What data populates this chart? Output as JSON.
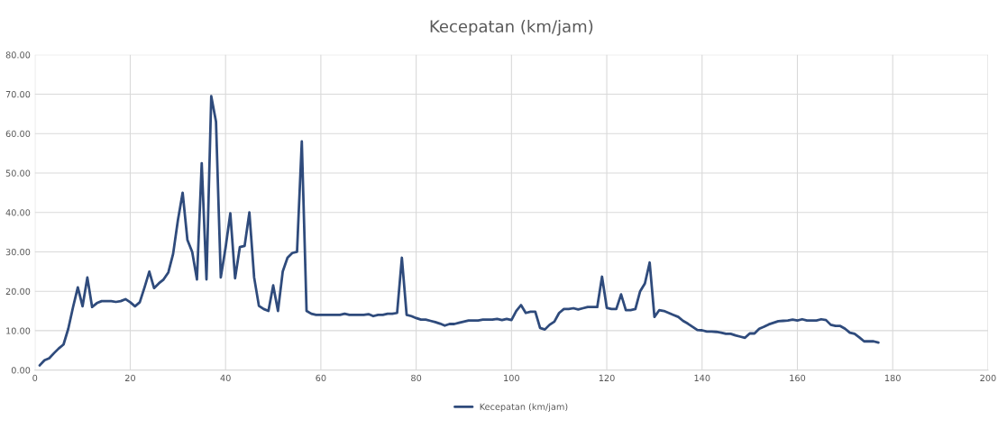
{
  "chart_data": {
    "type": "line",
    "title": "Kecepatan (km/jam)",
    "x": [
      1,
      2,
      3,
      4,
      5,
      6,
      7,
      8,
      9,
      10,
      11,
      12,
      13,
      14,
      15,
      16,
      17,
      18,
      19,
      20,
      21,
      22,
      23,
      24,
      25,
      26,
      27,
      28,
      29,
      30,
      31,
      32,
      33,
      34,
      35,
      36,
      37,
      38,
      39,
      40,
      41,
      42,
      43,
      44,
      45,
      46,
      47,
      48,
      49,
      50,
      51,
      52,
      53,
      54,
      55,
      56,
      57,
      58,
      59,
      60,
      61,
      62,
      63,
      64,
      65,
      66,
      67,
      68,
      69,
      70,
      71,
      72,
      73,
      74,
      75,
      76,
      77,
      78,
      79,
      80,
      81,
      82,
      83,
      84,
      85,
      86,
      87,
      88,
      89,
      90,
      91,
      92,
      93,
      94,
      95,
      96,
      97,
      98,
      99,
      100,
      101,
      102,
      103,
      104,
      105,
      106,
      107,
      108,
      109,
      110,
      111,
      112,
      113,
      114,
      115,
      116,
      117,
      118,
      119,
      120,
      121,
      122,
      123,
      124,
      125,
      126,
      127,
      128,
      129,
      130,
      131,
      132,
      133,
      134,
      135,
      136,
      137,
      138,
      139,
      140,
      141,
      142,
      143,
      144,
      145,
      146,
      147,
      148,
      149,
      150,
      151,
      152,
      153,
      154,
      155,
      156,
      157,
      158,
      159,
      160,
      161,
      162,
      163,
      164,
      165,
      166,
      167,
      168,
      169,
      170,
      171,
      172,
      173,
      174,
      175,
      176,
      177
    ],
    "series": [
      {
        "name": "Kecepatan (km/jam)",
        "color": "#2f4b7c",
        "values": [
          1.2,
          2.5,
          3.0,
          4.3,
          5.5,
          6.5,
          10.5,
          16,
          21,
          16.2,
          23.5,
          16,
          17,
          17.5,
          17.5,
          17.5,
          17.3,
          17.5,
          18,
          17.2,
          16.2,
          17.2,
          21,
          25,
          20.8,
          22,
          23,
          24.8,
          29.5,
          38,
          45,
          33,
          30,
          23,
          52.5,
          23,
          69.5,
          63,
          23.5,
          31,
          39.8,
          23.3,
          31.2,
          31.5,
          40,
          23.5,
          16.3,
          15.5,
          15,
          21.5,
          15,
          25,
          28.5,
          29.7,
          30,
          58,
          15,
          14.3,
          14,
          14,
          14,
          14,
          14,
          14,
          14.3,
          14,
          14,
          14,
          14,
          14.2,
          13.7,
          14,
          14,
          14.3,
          14.3,
          14.5,
          28.5,
          14,
          13.7,
          13.2,
          12.8,
          12.8,
          12.5,
          12.2,
          11.8,
          11.3,
          11.7,
          11.7,
          12,
          12.3,
          12.6,
          12.6,
          12.6,
          12.8,
          12.8,
          12.8,
          13,
          12.7,
          13,
          12.7,
          15,
          16.5,
          14.5,
          14.8,
          14.8,
          10.7,
          10.3,
          11.5,
          12.3,
          14.5,
          15.5,
          15.5,
          15.7,
          15.4,
          15.7,
          16,
          16,
          16,
          23.7,
          15.8,
          15.5,
          15.5,
          19.2,
          15.2,
          15.2,
          15.5,
          20,
          22,
          27.3,
          13.5,
          15.2,
          15,
          14.5,
          14,
          13.5,
          12.5,
          11.8,
          11,
          10.2,
          10.1,
          9.8,
          9.8,
          9.7,
          9.5,
          9.2,
          9.2,
          8.8,
          8.5,
          8.2,
          9.3,
          9.3,
          10.5,
          11,
          11.6,
          12,
          12.4,
          12.5,
          12.6,
          12.8,
          12.6,
          12.9,
          12.6,
          12.6,
          12.6,
          12.9,
          12.7,
          11.5,
          11.2,
          11.2,
          10.5,
          9.5,
          9.2,
          8.3,
          7.3,
          7.3,
          7.3,
          7.0
        ]
      }
    ],
    "xlim": [
      0,
      200
    ],
    "xticks": [
      0,
      20,
      40,
      60,
      80,
      100,
      120,
      140,
      160,
      180,
      200
    ],
    "ylim": [
      0,
      80
    ],
    "yticks": [
      {
        "value": 0,
        "label": "0.00"
      },
      {
        "value": 10,
        "label": "10.00"
      },
      {
        "value": 20,
        "label": "20.00"
      },
      {
        "value": 30,
        "label": "30.00"
      },
      {
        "value": 40,
        "label": "40.00"
      },
      {
        "value": 50,
        "label": "50.00"
      },
      {
        "value": 60,
        "label": "60.00"
      },
      {
        "value": 70,
        "label": "70.00"
      },
      {
        "value": 80,
        "label": "80.00"
      }
    ],
    "grid": true,
    "legend": "bottom",
    "marker": "none",
    "line_style": "solid"
  }
}
